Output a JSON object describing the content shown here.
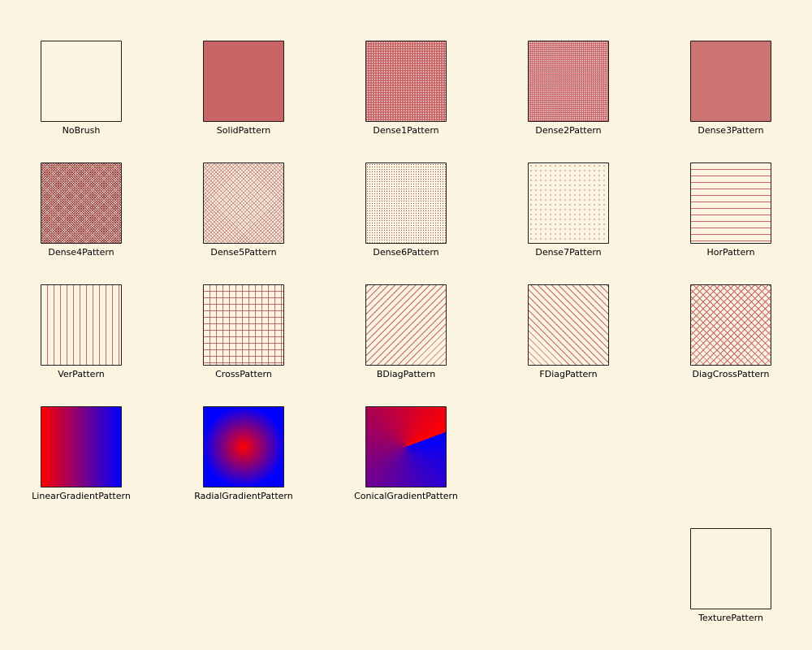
{
  "patterns": [
    {
      "label": "NoBrush",
      "brush": "nobrush"
    },
    {
      "label": "SolidPattern",
      "brush": "solid"
    },
    {
      "label": "Dense1Pattern",
      "brush": "dense1"
    },
    {
      "label": "Dense2Pattern",
      "brush": "dense2"
    },
    {
      "label": "Dense3Pattern",
      "brush": "dense3"
    },
    {
      "label": "Dense4Pattern",
      "brush": "dense4"
    },
    {
      "label": "Dense5Pattern",
      "brush": "dense5"
    },
    {
      "label": "Dense6Pattern",
      "brush": "dense6"
    },
    {
      "label": "Dense7Pattern",
      "brush": "dense7"
    },
    {
      "label": "HorPattern",
      "brush": "hor"
    },
    {
      "label": "VerPattern",
      "brush": "ver"
    },
    {
      "label": "CrossPattern",
      "brush": "cross"
    },
    {
      "label": "BDiagPattern",
      "brush": "bdiag"
    },
    {
      "label": "FDiagPattern",
      "brush": "fdiag"
    },
    {
      "label": "DiagCrossPattern",
      "brush": "diagcross"
    },
    {
      "label": "LinearGradientPattern",
      "brush": "linear"
    },
    {
      "label": "RadialGradientPattern",
      "brush": "radial"
    },
    {
      "label": "ConicalGradientPattern",
      "brush": "conical"
    },
    {
      "label": "TexturePattern",
      "brush": "texture"
    }
  ],
  "colors": {
    "background": "#faf4e1",
    "brush": "#c86464",
    "gradient_start": "#ff0000",
    "gradient_end": "#0000ff",
    "outline": "#202020"
  }
}
